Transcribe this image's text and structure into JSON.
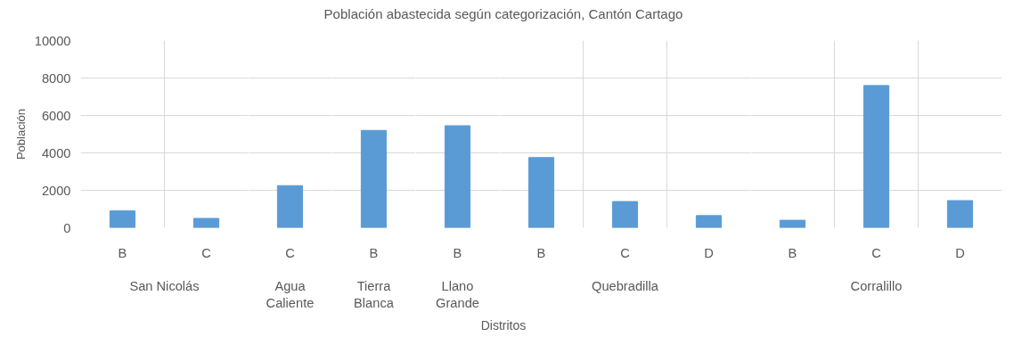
{
  "chart_data": [
    {
      "type": "other",
      "title": "Población abastecida según categorización, Cantón Cartago",
      "annotations": [
        "Distritos"
      ]
    },
    {
      "type": "bar",
      "xlabel": "San Nicolás",
      "ylabel": "Población",
      "categories": [
        "B",
        "C"
      ],
      "values": [
        900,
        500
      ],
      "color": "#5b9bd5",
      "ylim": [
        0,
        10000
      ],
      "yticks": [
        0,
        2000,
        4000,
        6000,
        8000,
        10000
      ],
      "grid": true
    },
    {
      "type": "bar",
      "xlabel": "Agua Caliente",
      "categories": [
        "C"
      ],
      "values": [
        2250
      ],
      "color": "#5b9bd5",
      "ylim": [
        0,
        10000
      ],
      "yticks": [
        0,
        2000,
        4000,
        6000,
        8000,
        10000
      ],
      "grid": true,
      "tick_labels": "x"
    },
    {
      "type": "bar",
      "xlabel": "Tierra Blanca",
      "categories": [
        "B"
      ],
      "values": [
        5200
      ],
      "color": "#5b9bd5",
      "ylim": [
        0,
        10000
      ],
      "yticks": [
        0,
        2000,
        4000,
        6000,
        8000,
        10000
      ],
      "grid": true,
      "tick_labels": "x"
    },
    {
      "type": "bar",
      "xlabel": "Llano Grande",
      "categories": [
        "B"
      ],
      "values": [
        5450
      ],
      "color": "#5b9bd5",
      "ylim": [
        0,
        10000
      ],
      "yticks": [
        0,
        2000,
        4000,
        6000,
        8000,
        10000
      ],
      "grid": true,
      "tick_labels": "x"
    },
    {
      "type": "bar",
      "xlabel": "Quebradilla",
      "categories": [
        "B",
        "C",
        "D"
      ],
      "values": [
        3750,
        1400,
        650
      ],
      "color": "#5b9bd5",
      "ylim": [
        0,
        10000
      ],
      "yticks": [
        0,
        2000,
        4000,
        6000,
        8000,
        10000
      ],
      "grid": true,
      "tick_labels": "x"
    },
    {
      "type": "bar",
      "xlabel": "Corralillo",
      "categories": [
        "B",
        "C",
        "D"
      ],
      "values": [
        400,
        7600,
        1450
      ],
      "color": "#5b9bd5",
      "ylim": [
        0,
        10000
      ],
      "yticks": [
        0,
        2000,
        4000,
        6000,
        8000,
        10000
      ],
      "grid": true,
      "tick_labels": "x"
    }
  ]
}
